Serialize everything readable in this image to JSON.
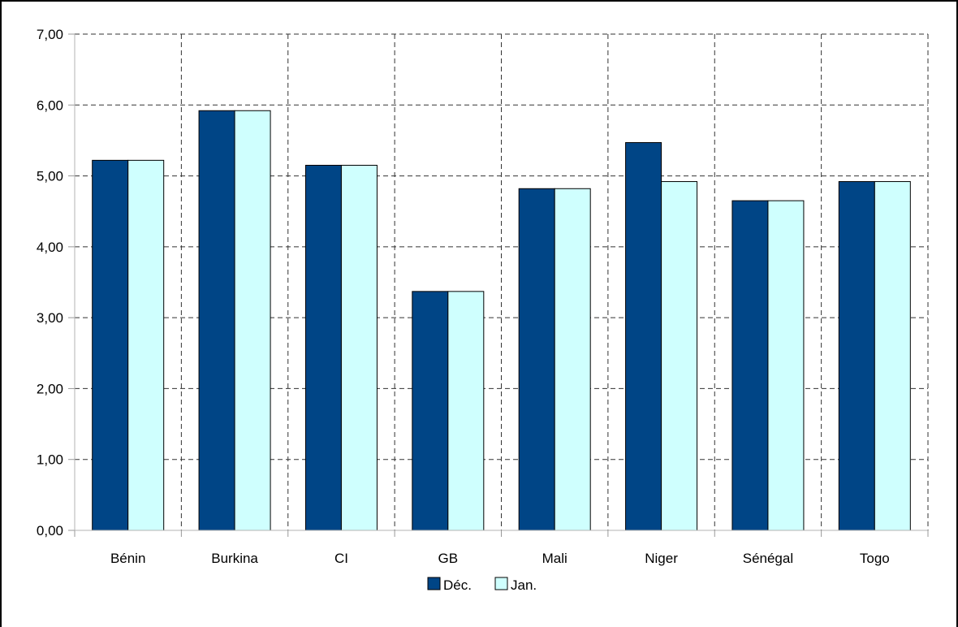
{
  "chart_data": {
    "type": "bar",
    "title": "",
    "xlabel": "",
    "ylabel": "",
    "categories": [
      "Bénin",
      "Burkina",
      "CI",
      "GB",
      "Mali",
      "Niger",
      "Sénégal",
      "Togo"
    ],
    "series": [
      {
        "name": "Déc.",
        "color": "#004586",
        "values": [
          5.22,
          5.92,
          5.15,
          3.37,
          4.82,
          5.47,
          4.65,
          4.92
        ]
      },
      {
        "name": "Jan.",
        "color": "#cffffe",
        "values": [
          5.22,
          5.92,
          5.15,
          3.37,
          4.82,
          4.92,
          4.65,
          4.92
        ]
      }
    ],
    "ylim": [
      0,
      7
    ],
    "yticks": [
      "0,00",
      "1,00",
      "2,00",
      "3,00",
      "4,00",
      "5,00",
      "6,00",
      "7,00"
    ],
    "grid": true,
    "grid_style": "dashed",
    "legend_position": "bottom-center"
  }
}
